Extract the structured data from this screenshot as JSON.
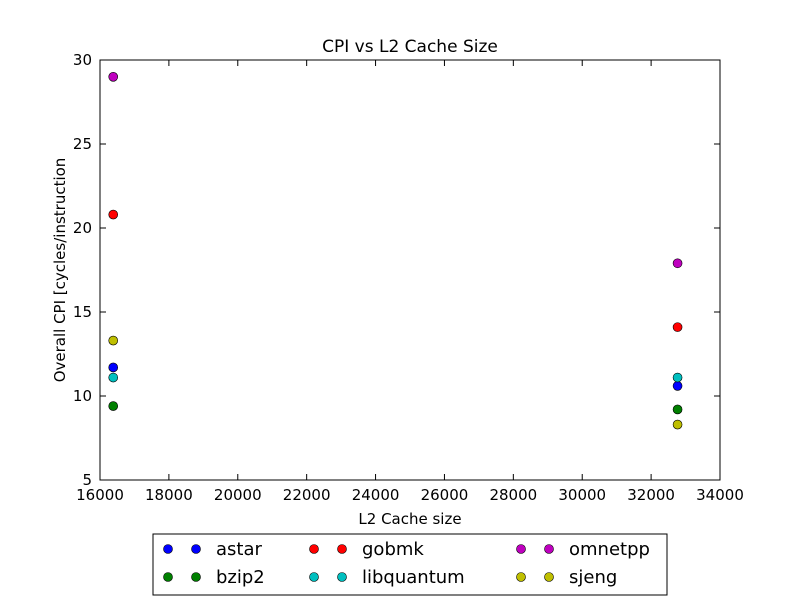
{
  "chart_data": {
    "type": "scatter",
    "title": "CPI vs L2 Cache Size",
    "xlabel": "L2 Cache size",
    "ylabel": "Overall CPI [cycles/instruction",
    "xlim": [
      16000,
      34000
    ],
    "ylim": [
      5,
      30
    ],
    "xticks": [
      16000,
      18000,
      20000,
      22000,
      24000,
      26000,
      28000,
      30000,
      32000,
      34000
    ],
    "yticks": [
      5,
      10,
      15,
      20,
      25,
      30
    ],
    "grid": false,
    "legend_position": "below plot",
    "series": [
      {
        "name": "astar",
        "color": "#0000ff",
        "x": [
          16384,
          32768
        ],
        "y": [
          11.7,
          10.6
        ]
      },
      {
        "name": "bzip2",
        "color": "#008000",
        "x": [
          16384,
          32768
        ],
        "y": [
          9.4,
          9.2
        ]
      },
      {
        "name": "gobmk",
        "color": "#ff0000",
        "x": [
          16384,
          32768
        ],
        "y": [
          20.8,
          14.1
        ]
      },
      {
        "name": "libquantum",
        "color": "#00bfbf",
        "x": [
          16384,
          32768
        ],
        "y": [
          11.1,
          11.1
        ]
      },
      {
        "name": "omnetpp",
        "color": "#bf00bf",
        "x": [
          16384,
          32768
        ],
        "y": [
          29.0,
          17.9
        ]
      },
      {
        "name": "sjeng",
        "color": "#bfbf00",
        "x": [
          16384,
          32768
        ],
        "y": [
          13.3,
          8.3
        ]
      }
    ]
  }
}
